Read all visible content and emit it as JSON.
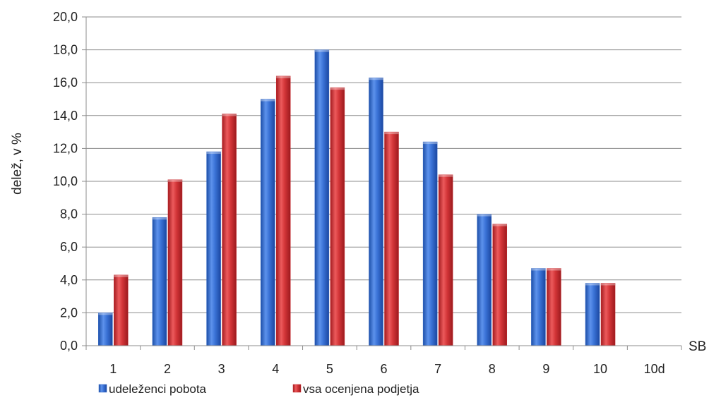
{
  "chart_data": {
    "type": "bar",
    "title": "",
    "xlabel": "SB",
    "ylabel": "delež, v %",
    "ylim": [
      0,
      20
    ],
    "y_ticks": [
      "0,0",
      "2,0",
      "4,0",
      "6,0",
      "8,0",
      "10,0",
      "12,0",
      "14,0",
      "16,0",
      "18,0",
      "20,0"
    ],
    "grid": true,
    "legend_position": "bottom-left",
    "categories": [
      "1",
      "2",
      "3",
      "4",
      "5",
      "6",
      "7",
      "8",
      "9",
      "10",
      "10d"
    ],
    "series": [
      {
        "name": "udeleženci pobota",
        "color": "#2e63c4",
        "values": [
          2.0,
          7.8,
          11.8,
          15.0,
          18.0,
          16.3,
          12.4,
          8.0,
          4.7,
          3.8,
          0
        ]
      },
      {
        "name": "vsa ocenjena podjetja",
        "color": "#c8282c",
        "values": [
          4.3,
          10.1,
          14.1,
          16.4,
          15.7,
          13.0,
          10.4,
          7.4,
          4.7,
          3.8,
          0
        ]
      }
    ]
  }
}
